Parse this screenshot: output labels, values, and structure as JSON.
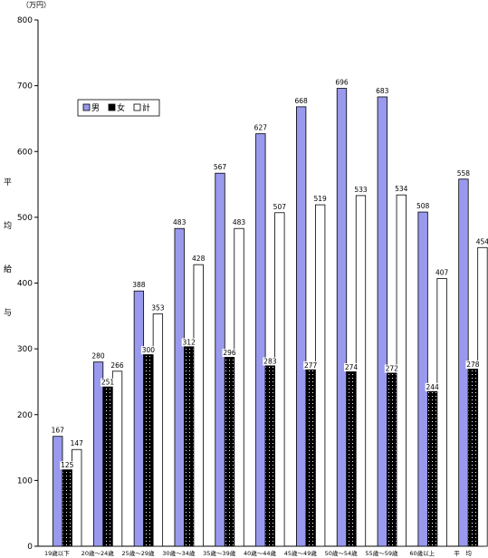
{
  "chart_data": {
    "type": "bar",
    "unit_label": "（万円）",
    "ylabel_chars": [
      "平",
      "均",
      "給",
      "与"
    ],
    "ylim": [
      0,
      800
    ],
    "yticks": [
      0,
      100,
      200,
      300,
      400,
      500,
      600,
      700,
      800
    ],
    "grid": false,
    "legend_position": "top-left",
    "categories": [
      "19歳以下",
      "20歳～24歳",
      "25歳～29歳",
      "30歳～34歳",
      "35歳～39歳",
      "40歳～44歳",
      "45歳～49歳",
      "50歳～54歳",
      "55歳～59歳",
      "60歳以上",
      "平　均"
    ],
    "series": [
      {
        "name": "男",
        "color": "#9999ee",
        "pattern": "solid",
        "values": [
          167,
          280,
          388,
          483,
          567,
          627,
          668,
          696,
          683,
          508,
          558
        ]
      },
      {
        "name": "女",
        "color": "#000000",
        "pattern": "dots",
        "values": [
          125,
          251,
          300,
          312,
          296,
          283,
          277,
          274,
          272,
          244,
          278
        ]
      },
      {
        "name": "計",
        "color": "#ffffff",
        "pattern": "empty",
        "values": [
          147,
          266,
          353,
          428,
          483,
          507,
          519,
          533,
          534,
          407,
          454
        ]
      }
    ]
  }
}
